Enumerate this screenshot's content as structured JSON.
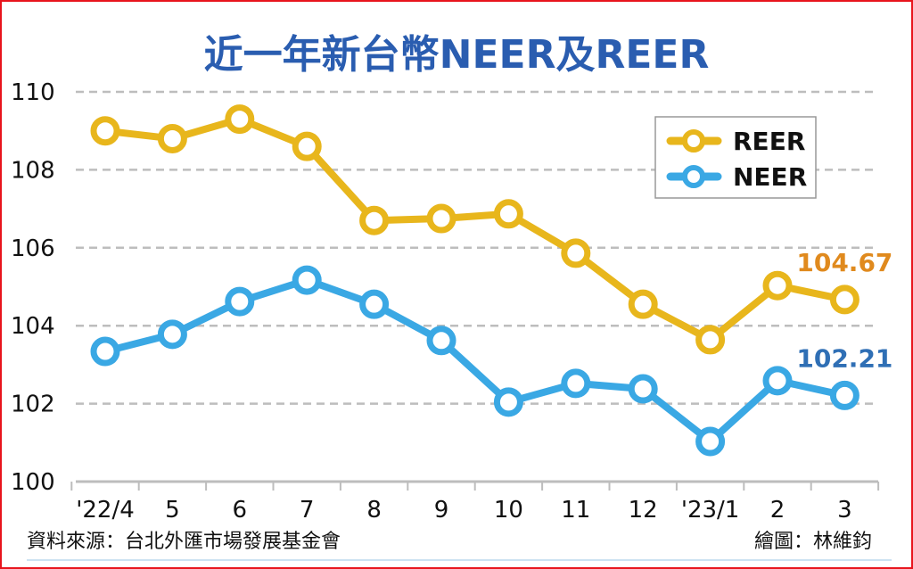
{
  "chart_data": {
    "type": "line",
    "title": "近一年新台幣NEER及REER",
    "categories": [
      "'22/4",
      "5",
      "6",
      "7",
      "8",
      "9",
      "10",
      "11",
      "12",
      "'23/1",
      "2",
      "3"
    ],
    "ylim": [
      100,
      110
    ],
    "yticks": [
      "100",
      "102",
      "104",
      "106",
      "108",
      "110"
    ],
    "grid": true,
    "legend_position": "top-right",
    "series": [
      {
        "name": "REER",
        "color": "#e8b61c",
        "values": [
          109.0,
          108.8,
          109.3,
          108.6,
          106.7,
          106.75,
          106.87,
          105.86,
          104.55,
          103.64,
          105.03,
          104.67
        ]
      },
      {
        "name": "NEER",
        "color": "#3aa8e4",
        "values": [
          103.34,
          103.78,
          104.62,
          105.17,
          104.55,
          103.62,
          102.04,
          102.52,
          102.38,
          101.03,
          102.59,
          102.21
        ]
      }
    ],
    "annotations": [
      {
        "text": "104.67",
        "series": "REER",
        "color": "#e08a1e"
      },
      {
        "text": "102.21",
        "series": "NEER",
        "color": "#2f6fb5"
      }
    ],
    "source": "資料來源：台北外匯市場發展基金會",
    "credit": "繪圖：林維鈞"
  }
}
